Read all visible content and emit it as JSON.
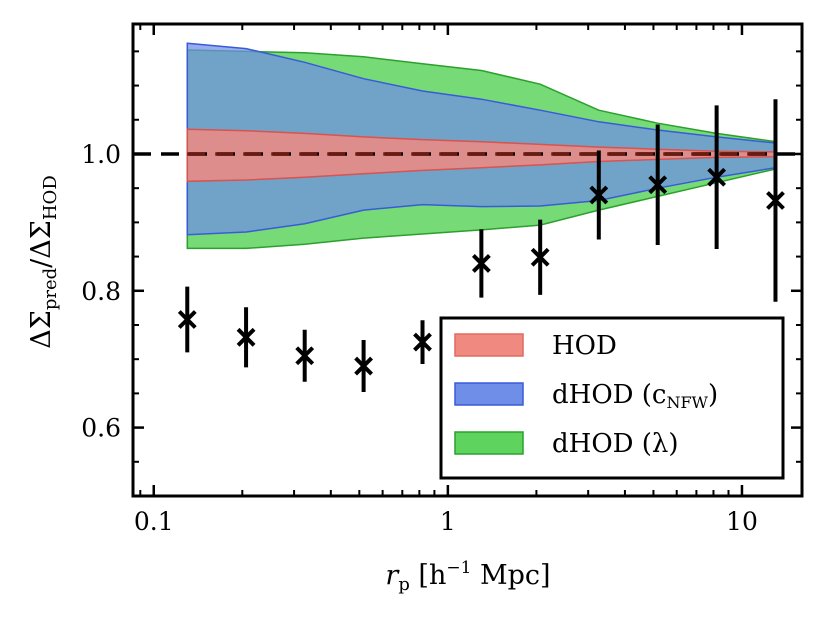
{
  "chart_data": {
    "type": "line",
    "xlabel": {
      "main": "r",
      "sub": "p",
      "units_open": " [h",
      "units_sup": "−1",
      "units_close": " Mpc]"
    },
    "ylabel": {
      "delta": "ΔΣ",
      "num_sub": "pred",
      "slash": "/",
      "den_sub": "HOD"
    },
    "x_scale": "log",
    "xlim": [
      0.085,
      16
    ],
    "ylim": [
      0.5,
      1.19
    ],
    "x_ticks": [
      {
        "value": 0.1,
        "label": "0.1"
      },
      {
        "value": 1,
        "label": "1"
      },
      {
        "value": 10,
        "label": "10"
      }
    ],
    "y_ticks": [
      {
        "value": 0.6,
        "label": "0.6"
      },
      {
        "value": 0.8,
        "label": "0.8"
      },
      {
        "value": 1.0,
        "label": "1.0"
      }
    ],
    "reference_line": {
      "y": 1.0,
      "style": "dashed",
      "color": "#000000"
    },
    "x": [
      0.13,
      0.206,
      0.326,
      0.517,
      0.82,
      1.3,
      2.06,
      3.26,
      5.17,
      8.2,
      13.0
    ],
    "bands": [
      {
        "name": "dHOD (λ)",
        "color": "#2ca02c",
        "fill": "#5ed35e",
        "lower": [
          0.862,
          0.862,
          0.868,
          0.877,
          0.883,
          0.889,
          0.896,
          0.918,
          0.938,
          0.958,
          0.978
        ],
        "upper": [
          1.152,
          1.15,
          1.148,
          1.142,
          1.132,
          1.122,
          1.102,
          1.064,
          1.045,
          1.03,
          1.018
        ]
      },
      {
        "name": "dHOD (c_NFW)",
        "color": "#3a5bd9",
        "fill": "#6f8ee8",
        "lower": [
          0.882,
          0.886,
          0.898,
          0.918,
          0.926,
          0.923,
          0.924,
          0.932,
          0.95,
          0.966,
          0.98
        ],
        "upper": [
          1.162,
          1.154,
          1.134,
          1.11,
          1.092,
          1.08,
          1.064,
          1.047,
          1.035,
          1.025,
          1.016
        ]
      },
      {
        "name": "HOD",
        "color": "#d9534f",
        "fill": "#f08a80",
        "lower": [
          0.96,
          0.962,
          0.966,
          0.971,
          0.976,
          0.98,
          0.984,
          0.989,
          0.992,
          0.995,
          0.996
        ],
        "upper": [
          1.036,
          1.034,
          1.03,
          1.025,
          1.021,
          1.018,
          1.014,
          1.01,
          1.007,
          1.004,
          1.003
        ]
      }
    ],
    "band_line": {
      "y": 1.0,
      "color": "#6b1a10",
      "style": "dashed"
    },
    "points": {
      "marker": "x",
      "color": "#000000",
      "y": [
        0.758,
        0.732,
        0.705,
        0.69,
        0.725,
        0.84,
        0.849,
        0.94,
        0.955,
        0.966,
        0.932
      ],
      "yerr": [
        0.048,
        0.044,
        0.038,
        0.038,
        0.032,
        0.05,
        0.055,
        0.065,
        0.088,
        0.105,
        0.148
      ]
    },
    "legend": {
      "placement": "lower-right",
      "entries": [
        {
          "label": "HOD",
          "color": "#f08a80",
          "edge": "#e06b60"
        },
        {
          "label_main": "dHOD (c",
          "label_sub": "NFW",
          "label_end": ")",
          "color": "#6f8ee8",
          "edge": "#3a5bd9"
        },
        {
          "label": "dHOD (λ)",
          "color": "#5ed35e",
          "edge": "#2ca02c"
        }
      ]
    },
    "grid": false
  }
}
